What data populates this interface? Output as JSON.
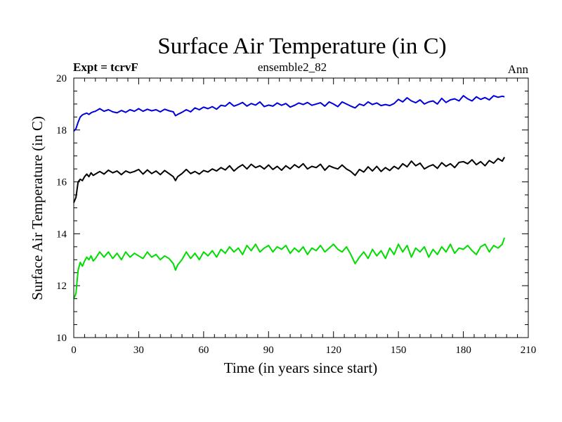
{
  "chart_data": {
    "type": "line",
    "title": "Surface Air Temperature (in C)",
    "subtitle_left": "Expt = tcrvF",
    "subtitle_center": "ensemble2_82",
    "subtitle_right": "Ann",
    "xlabel": "Time (in years since start)",
    "ylabel": "Surface Air Temperature (in C)",
    "xlim": [
      0,
      210
    ],
    "ylim": [
      10,
      20
    ],
    "xticks": [
      0,
      30,
      60,
      90,
      120,
      150,
      180,
      210
    ],
    "yticks": [
      10,
      12,
      14,
      16,
      18,
      20
    ],
    "series": [
      {
        "name": "blue",
        "color": "#0000dd",
        "x": [
          0,
          1,
          2,
          3,
          4,
          5,
          6,
          7,
          8,
          9,
          10,
          12,
          14,
          16,
          18,
          20,
          22,
          24,
          26,
          28,
          30,
          32,
          34,
          36,
          38,
          40,
          42,
          44,
          46,
          47,
          48,
          50,
          52,
          54,
          56,
          58,
          60,
          62,
          64,
          66,
          68,
          70,
          72,
          74,
          76,
          78,
          80,
          82,
          84,
          86,
          88,
          90,
          92,
          94,
          96,
          98,
          100,
          102,
          104,
          106,
          108,
          110,
          112,
          114,
          116,
          118,
          120,
          122,
          124,
          126,
          128,
          130,
          132,
          134,
          136,
          138,
          140,
          142,
          144,
          146,
          148,
          150,
          152,
          154,
          156,
          158,
          160,
          162,
          164,
          166,
          168,
          170,
          172,
          174,
          176,
          178,
          180,
          182,
          184,
          186,
          188,
          190,
          192,
          194,
          196,
          198,
          199
        ],
        "values": [
          17.95,
          18.05,
          18.3,
          18.5,
          18.58,
          18.62,
          18.65,
          18.6,
          18.66,
          18.7,
          18.72,
          18.82,
          18.72,
          18.78,
          18.7,
          18.66,
          18.75,
          18.68,
          18.78,
          18.72,
          18.82,
          18.72,
          18.8,
          18.74,
          18.78,
          18.7,
          18.8,
          18.74,
          18.7,
          18.55,
          18.6,
          18.68,
          18.78,
          18.7,
          18.85,
          18.78,
          18.88,
          18.82,
          18.9,
          18.8,
          18.95,
          18.92,
          19.06,
          18.92,
          18.98,
          19.06,
          18.92,
          19.02,
          18.96,
          19.08,
          18.9,
          18.96,
          18.92,
          19.04,
          18.95,
          19.02,
          18.88,
          18.95,
          19.04,
          18.98,
          19.06,
          18.95,
          19.0,
          19.05,
          18.92,
          19.08,
          19.0,
          18.9,
          19.08,
          19.0,
          18.92,
          18.85,
          19.0,
          18.94,
          19.08,
          18.98,
          19.04,
          18.94,
          18.98,
          18.94,
          19.02,
          19.18,
          19.08,
          19.24,
          19.12,
          19.05,
          19.16,
          19.0,
          19.08,
          19.12,
          19.0,
          19.22,
          19.06,
          19.16,
          19.2,
          19.12,
          19.32,
          19.2,
          19.12,
          19.28,
          19.18,
          19.25,
          19.16,
          19.32,
          19.26,
          19.3,
          19.28
        ]
      },
      {
        "name": "black",
        "color": "#000000",
        "x": [
          0,
          1,
          2,
          3,
          4,
          5,
          6,
          7,
          8,
          9,
          10,
          12,
          14,
          16,
          18,
          20,
          22,
          24,
          26,
          28,
          30,
          32,
          34,
          36,
          38,
          40,
          42,
          44,
          46,
          47,
          48,
          50,
          52,
          54,
          56,
          58,
          60,
          62,
          64,
          66,
          68,
          70,
          72,
          74,
          76,
          78,
          80,
          82,
          84,
          86,
          88,
          90,
          92,
          94,
          96,
          98,
          100,
          102,
          104,
          106,
          108,
          110,
          112,
          114,
          116,
          118,
          120,
          122,
          124,
          126,
          128,
          130,
          132,
          134,
          136,
          138,
          140,
          142,
          144,
          146,
          148,
          150,
          152,
          154,
          156,
          158,
          160,
          162,
          164,
          166,
          168,
          170,
          172,
          174,
          176,
          178,
          180,
          182,
          184,
          186,
          188,
          190,
          192,
          194,
          196,
          198,
          199
        ],
        "values": [
          15.2,
          15.4,
          16.0,
          16.1,
          16.05,
          16.2,
          16.3,
          16.2,
          16.35,
          16.25,
          16.3,
          16.4,
          16.3,
          16.45,
          16.35,
          16.42,
          16.28,
          16.42,
          16.35,
          16.4,
          16.48,
          16.3,
          16.46,
          16.32,
          16.42,
          16.28,
          16.44,
          16.32,
          16.2,
          16.05,
          16.2,
          16.32,
          16.48,
          16.32,
          16.4,
          16.3,
          16.44,
          16.38,
          16.5,
          16.42,
          16.55,
          16.46,
          16.62,
          16.42,
          16.56,
          16.66,
          16.5,
          16.68,
          16.55,
          16.62,
          16.5,
          16.65,
          16.48,
          16.6,
          16.45,
          16.62,
          16.5,
          16.66,
          16.55,
          16.7,
          16.5,
          16.6,
          16.55,
          16.68,
          16.45,
          16.62,
          16.55,
          16.5,
          16.65,
          16.5,
          16.4,
          16.25,
          16.48,
          16.38,
          16.58,
          16.42,
          16.6,
          16.4,
          16.55,
          16.44,
          16.6,
          16.5,
          16.7,
          16.58,
          16.8,
          16.62,
          16.72,
          16.5,
          16.6,
          16.66,
          16.52,
          16.74,
          16.6,
          16.7,
          16.55,
          16.75,
          16.78,
          16.7,
          16.85,
          16.66,
          16.78,
          16.62,
          16.82,
          16.72,
          16.9,
          16.8,
          16.95
        ]
      },
      {
        "name": "green",
        "color": "#00dd00",
        "x": [
          0,
          1,
          2,
          3,
          4,
          5,
          6,
          7,
          8,
          9,
          10,
          12,
          14,
          16,
          18,
          20,
          22,
          24,
          26,
          28,
          30,
          32,
          34,
          36,
          38,
          40,
          42,
          44,
          46,
          47,
          48,
          50,
          52,
          54,
          56,
          58,
          60,
          62,
          64,
          66,
          68,
          70,
          72,
          74,
          76,
          78,
          80,
          82,
          84,
          86,
          88,
          90,
          92,
          94,
          96,
          98,
          100,
          102,
          104,
          106,
          108,
          110,
          112,
          114,
          116,
          118,
          120,
          122,
          124,
          126,
          128,
          130,
          132,
          134,
          136,
          138,
          140,
          142,
          144,
          146,
          148,
          150,
          152,
          154,
          156,
          158,
          160,
          162,
          164,
          166,
          168,
          170,
          172,
          174,
          176,
          178,
          180,
          182,
          184,
          186,
          188,
          190,
          192,
          194,
          196,
          198,
          199
        ],
        "values": [
          11.5,
          11.7,
          12.6,
          12.9,
          12.75,
          12.95,
          13.1,
          13.0,
          13.15,
          12.95,
          13.05,
          13.3,
          13.1,
          13.3,
          13.05,
          13.25,
          13.0,
          13.3,
          13.1,
          13.25,
          13.15,
          13.05,
          13.3,
          13.1,
          13.2,
          13.0,
          13.15,
          13.05,
          12.85,
          12.6,
          12.8,
          13.0,
          13.3,
          13.05,
          13.25,
          13.0,
          13.3,
          13.15,
          13.35,
          13.1,
          13.4,
          13.25,
          13.5,
          13.3,
          13.45,
          13.2,
          13.55,
          13.35,
          13.6,
          13.3,
          13.45,
          13.55,
          13.3,
          13.5,
          13.4,
          13.55,
          13.25,
          13.45,
          13.3,
          13.5,
          13.2,
          13.45,
          13.35,
          13.55,
          13.3,
          13.45,
          13.6,
          13.4,
          13.3,
          13.5,
          13.2,
          12.85,
          13.1,
          13.3,
          13.05,
          13.4,
          13.15,
          13.35,
          13.05,
          13.45,
          13.2,
          13.6,
          13.3,
          13.55,
          13.1,
          13.45,
          13.3,
          13.5,
          13.1,
          13.4,
          13.2,
          13.5,
          13.3,
          13.6,
          13.25,
          13.45,
          13.4,
          13.55,
          13.35,
          13.2,
          13.5,
          13.6,
          13.3,
          13.55,
          13.45,
          13.6,
          13.85
        ]
      }
    ]
  }
}
